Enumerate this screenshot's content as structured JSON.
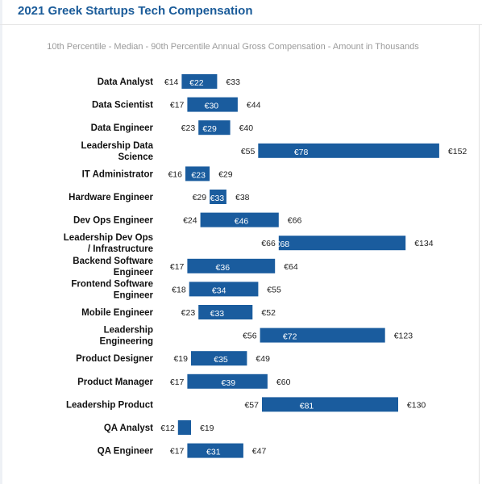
{
  "page": {
    "title": "2021 Greek Startups Tech Compensation"
  },
  "chart_data": {
    "type": "bar",
    "title": "",
    "subtitle": "10th Percentile - Median - 90th Percentile Annual Gross Compensation - Amount in Thousands",
    "currency": "€",
    "bar_color": "#1a5c9e",
    "categories": [
      "Data Analyst",
      "Data Scientist",
      "Data Engineer",
      "Leadership Data Science",
      "IT Administrator",
      "Hardware Engineer",
      "Dev Ops Engineer",
      "Leadership Dev Ops / Infrastructure",
      "Backend Software Engineer",
      "Frontend Software Engineer",
      "Mobile Engineer",
      "Leadership Engineering",
      "Product Designer",
      "Product Manager",
      "Leadership Product",
      "QA Analyst",
      "QA Engineer"
    ],
    "category_lines": [
      [
        "Data Analyst"
      ],
      [
        "Data Scientist"
      ],
      [
        "Data Engineer"
      ],
      [
        "Leadership Data",
        "Science"
      ],
      [
        "IT Administrator"
      ],
      [
        "Hardware Engineer"
      ],
      [
        "Dev Ops Engineer"
      ],
      [
        "Leadership Dev Ops",
        "/ Infrastructure"
      ],
      [
        "Backend Software",
        "Engineer"
      ],
      [
        "Frontend Software",
        "Engineer"
      ],
      [
        "Mobile Engineer"
      ],
      [
        "Leadership",
        "Engineering"
      ],
      [
        "Product Designer"
      ],
      [
        "Product Manager"
      ],
      [
        "Leadership Product"
      ],
      [
        "QA Analyst"
      ],
      [
        "QA Engineer"
      ]
    ],
    "series": [
      {
        "name": "10th Percentile",
        "values": [
          14,
          17,
          23,
          55,
          16,
          29,
          24,
          66,
          17,
          18,
          23,
          56,
          19,
          17,
          57,
          12,
          17
        ]
      },
      {
        "name": "Median",
        "values": [
          22,
          30,
          29,
          78,
          23,
          33,
          46,
          68,
          36,
          34,
          33,
          72,
          35,
          39,
          81,
          null,
          31
        ]
      },
      {
        "name": "90th Percentile",
        "values": [
          33,
          44,
          40,
          152,
          29,
          38,
          66,
          134,
          64,
          55,
          52,
          123,
          49,
          60,
          130,
          19,
          47
        ]
      }
    ],
    "labels": {
      "p10": [
        "€14",
        "€17",
        "€23",
        "€55",
        "€16",
        "€29",
        "€24",
        "€66",
        "€17",
        "€18",
        "€23",
        "€56",
        "€19",
        "€17",
        "€57",
        "€12",
        "€17"
      ],
      "median": [
        "€22",
        "€30",
        "€29",
        "€78",
        "€23",
        "€33",
        "€46",
        "€68",
        "€36",
        "€34",
        "€33",
        "€72",
        "€35",
        "€39",
        "€81",
        "",
        "€31"
      ],
      "p90": [
        "€33",
        "€44",
        "€40",
        "€152",
        "€29",
        "€38",
        "€66",
        "€134",
        "€64",
        "€55",
        "€52",
        "€123",
        "€49",
        "€60",
        "€130",
        "€19",
        "€47"
      ]
    },
    "xlim": [
      0,
      152
    ],
    "grid": false,
    "legend": "none"
  }
}
